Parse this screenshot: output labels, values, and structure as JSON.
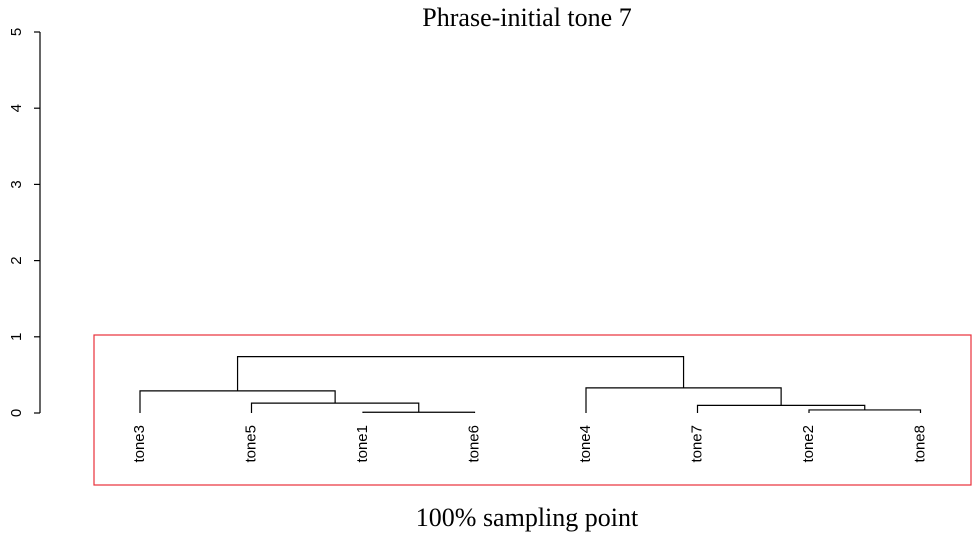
{
  "chart_data": {
    "type": "dendrogram",
    "title": "Phrase-initial tone 7",
    "xlabel": "100% sampling point",
    "ylabel": "",
    "ylim": [
      0,
      5
    ],
    "yticks": [
      "0",
      "1",
      "2",
      "3",
      "4",
      "5"
    ],
    "yticks_values": [
      0,
      1,
      2,
      3,
      4,
      5
    ],
    "leaves": [
      "tone3",
      "tone5",
      "tone1",
      "tone6",
      "tone4",
      "tone7",
      "tone2",
      "tone8"
    ],
    "merges": [
      {
        "left": "tone1",
        "right": "tone6",
        "height": 0.01
      },
      {
        "left": "tone2",
        "right": "tone8",
        "height": 0.04
      },
      {
        "left": "tone7",
        "right": [
          "tone2",
          "tone8"
        ],
        "height": 0.1
      },
      {
        "left": "tone5",
        "right": [
          "tone1",
          "tone6"
        ],
        "height": 0.13
      },
      {
        "left": "tone3",
        "right": [
          "tone5",
          "tone1",
          "tone6"
        ],
        "height": 0.29
      },
      {
        "left": "tone4",
        "right": [
          "tone7",
          "tone2",
          "tone8"
        ],
        "height": 0.33
      },
      {
        "left": [
          "tone3",
          "tone5",
          "tone1",
          "tone6"
        ],
        "right": [
          "tone4",
          "tone7",
          "tone2",
          "tone8"
        ],
        "height": 0.74
      }
    ],
    "highlight_color": "#e8303a"
  }
}
